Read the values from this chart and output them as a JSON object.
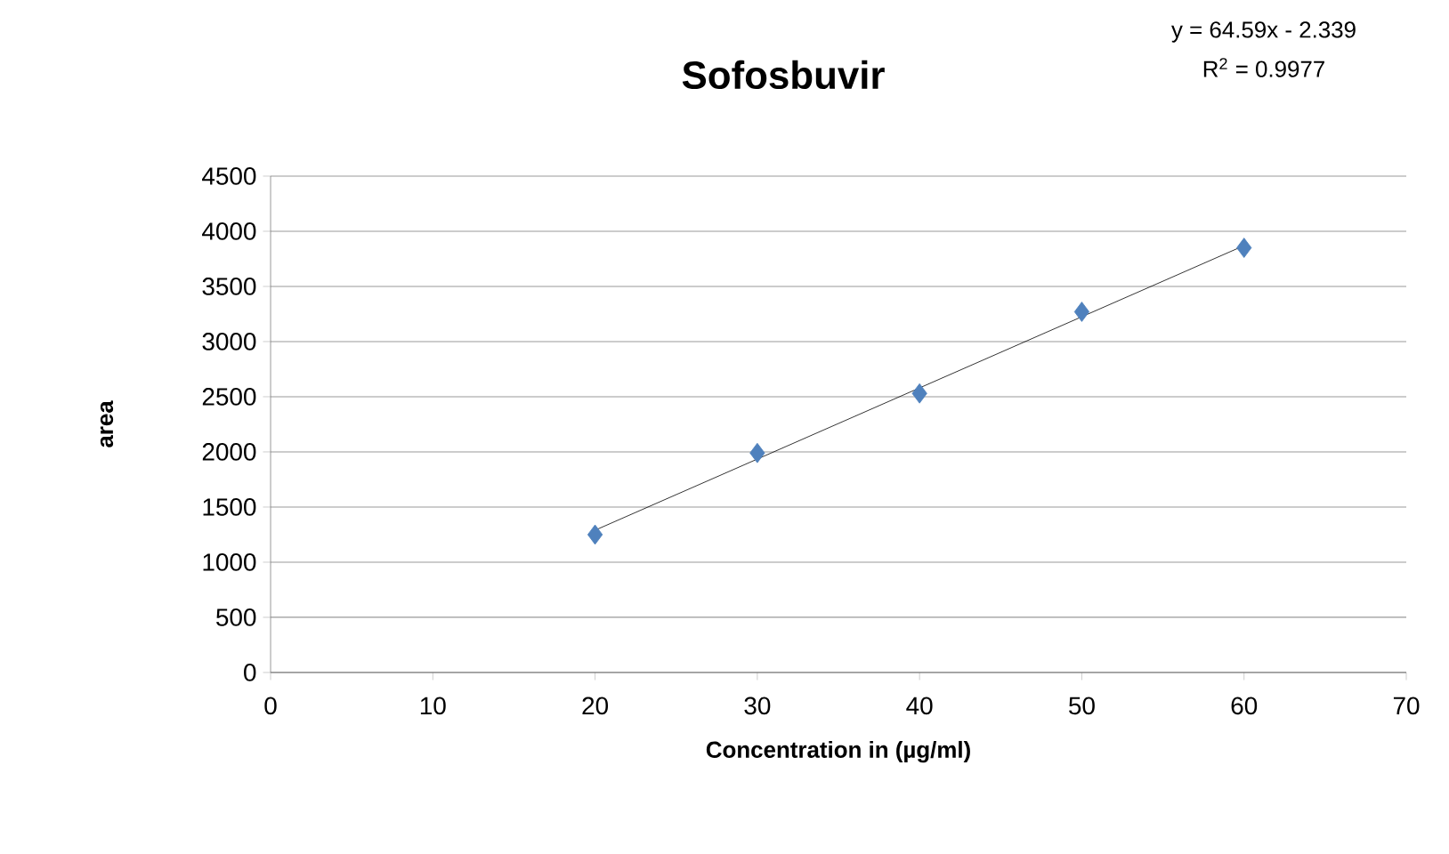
{
  "chart_data": {
    "type": "scatter",
    "title": "Sofosbuvir",
    "xlabel": "Concentration in (µg/ml)",
    "ylabel": "area",
    "annotations": [
      "y = 64.59x - 2.339",
      "R$^{2}$ = 0.9977"
    ],
    "series": [
      {
        "color": "#4f81bd",
        "marker": "diamond",
        "x": [
          20,
          30,
          40,
          50,
          60
        ],
        "values": [
          1250,
          1990,
          2530,
          3270,
          3850
        ]
      },
      {
        "type": "line",
        "color": "#000000",
        "marker": "none",
        "line_style": "solid",
        "x": [
          20,
          60
        ],
        "values": [
          1290,
          3870
        ]
      }
    ],
    "xlim": [
      0,
      70
    ],
    "xticks": [
      0,
      10,
      20,
      30,
      40,
      50,
      60,
      70
    ],
    "ylim": [
      0,
      4500
    ],
    "yticks": [
      0,
      500,
      1000,
      1500,
      2000,
      2500,
      3000,
      3500,
      4000,
      4500
    ],
    "grid": "y"
  }
}
